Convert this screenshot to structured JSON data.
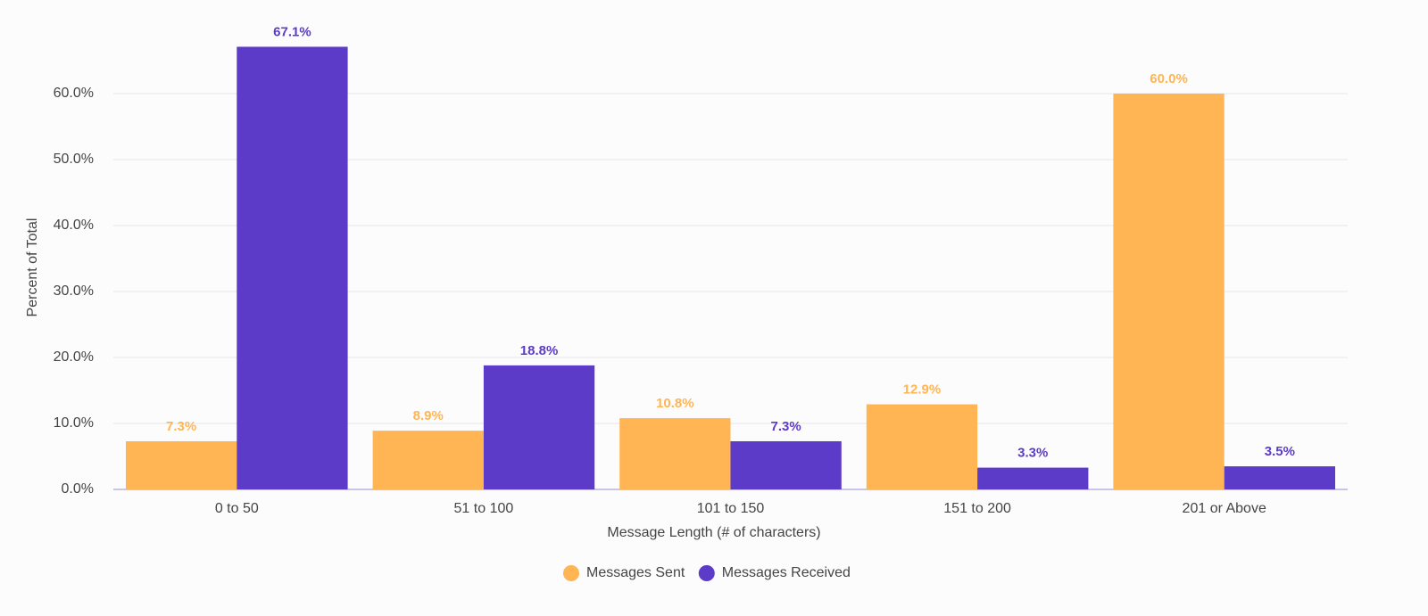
{
  "chart_data": {
    "type": "bar",
    "x_label": "Message Length (# of characters)",
    "y_label": "Percent of Total",
    "categories": [
      "0 to 50",
      "51 to 100",
      "101 to 150",
      "151 to 200",
      "201 or Above"
    ],
    "series": [
      {
        "name": "Messages Sent",
        "color": "#ffb554",
        "values": [
          7.3,
          8.9,
          10.8,
          12.9,
          60.0
        ],
        "value_labels": [
          "7.3%",
          "8.9%",
          "10.8%",
          "12.9%",
          "60.0%"
        ]
      },
      {
        "name": "Messages Received",
        "color": "#5c3bc9",
        "values": [
          67.1,
          18.8,
          7.3,
          3.3,
          3.5
        ],
        "value_labels": [
          "67.1%",
          "18.8%",
          "7.3%",
          "3.3%",
          "3.5%"
        ]
      }
    ],
    "ylim": [
      0,
      70
    ],
    "yticks": [
      {
        "value": 0,
        "label": "0.0%"
      },
      {
        "value": 10,
        "label": "10.0%"
      },
      {
        "value": 20,
        "label": "20.0%"
      },
      {
        "value": 30,
        "label": "30.0%"
      },
      {
        "value": 40,
        "label": "40.0%"
      },
      {
        "value": 50,
        "label": "50.0%"
      },
      {
        "value": 60,
        "label": "60.0%"
      }
    ],
    "grid": true,
    "legend": "bottom"
  }
}
